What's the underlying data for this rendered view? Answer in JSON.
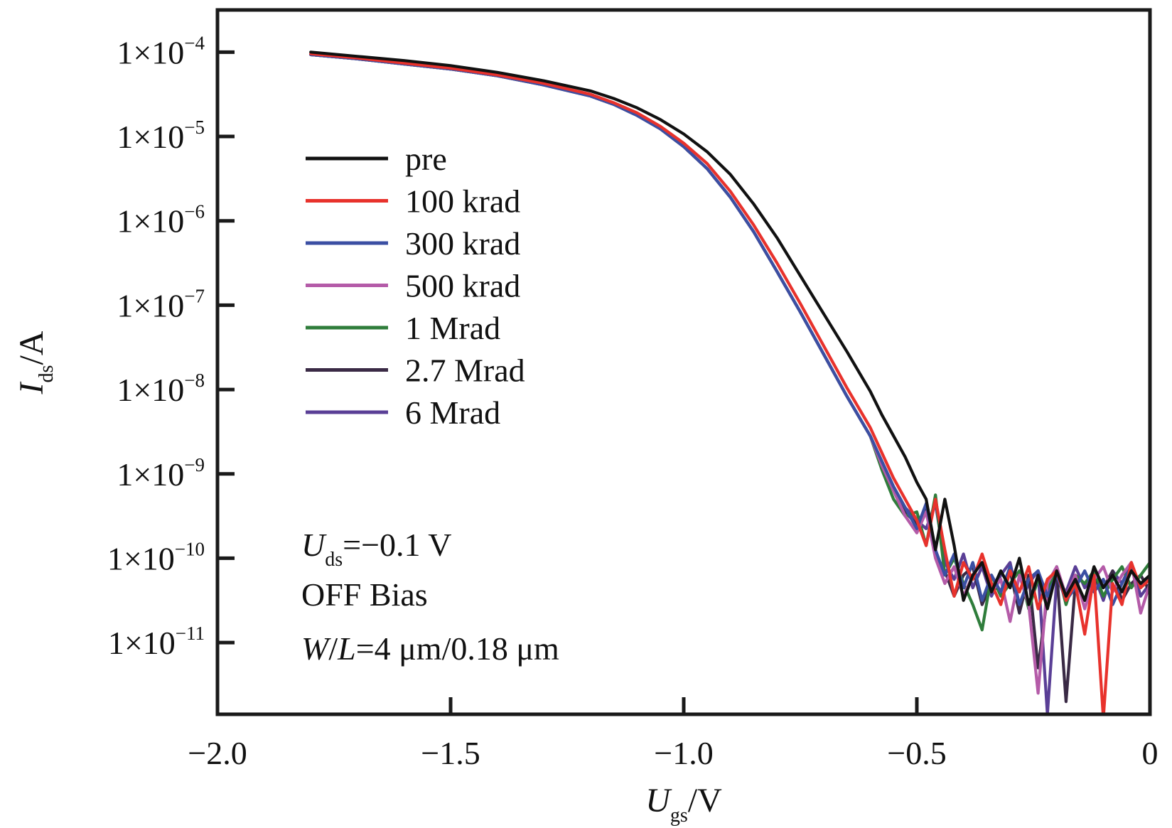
{
  "chart_data": {
    "type": "line",
    "title": "",
    "xlabel": {
      "main": "U",
      "sub": "gs",
      "unit": "/V"
    },
    "ylabel": {
      "main": "I",
      "sub": "ds",
      "unit": "/A"
    },
    "xlim": [
      -2.0,
      0
    ],
    "ylim_log10": [
      -11.85,
      -3.5
    ],
    "yscale": "log",
    "grid": false,
    "legend_position": "upper-left",
    "x_ticks": [
      {
        "value": -2.0,
        "label": "−2.0"
      },
      {
        "value": -1.5,
        "label": "−1.5"
      },
      {
        "value": -1.0,
        "label": "−1.0"
      },
      {
        "value": -0.5,
        "label": "−0.5"
      },
      {
        "value": 0,
        "label": "0"
      }
    ],
    "y_ticks": [
      {
        "exp": -4,
        "base": "1×10",
        "sup": "−4"
      },
      {
        "exp": -5,
        "base": "1×10",
        "sup": "−5"
      },
      {
        "exp": -6,
        "base": "1×10",
        "sup": "−6"
      },
      {
        "exp": -7,
        "base": "1×10",
        "sup": "−7"
      },
      {
        "exp": -8,
        "base": "1×10",
        "sup": "−8"
      },
      {
        "exp": -9,
        "base": "1×10",
        "sup": "−9"
      },
      {
        "exp": -10,
        "base": "1×10",
        "sup": "−10"
      },
      {
        "exp": -11,
        "base": "1×10",
        "sup": "−11"
      }
    ],
    "annotations": [
      {
        "main": "U",
        "sub": "ds",
        "rest": "=−0.1 V"
      },
      {
        "text": "OFF Bias"
      },
      {
        "italic1": "W",
        "sep": "/",
        "italic2": "L",
        "rest": "=4 μm/0.18 μm"
      }
    ],
    "x": [
      -1.8,
      -1.7,
      -1.6,
      -1.5,
      -1.4,
      -1.3,
      -1.2,
      -1.15,
      -1.1,
      -1.05,
      -1.0,
      -0.95,
      -0.9,
      -0.85,
      -0.8,
      -0.75,
      -0.7,
      -0.65,
      -0.6,
      -0.575,
      -0.55,
      -0.525,
      -0.5,
      -0.48,
      -0.46,
      -0.44,
      -0.42,
      -0.4,
      -0.38,
      -0.36,
      -0.34,
      -0.32,
      -0.3,
      -0.28,
      -0.26,
      -0.24,
      -0.22,
      -0.2,
      -0.18,
      -0.16,
      -0.14,
      -0.12,
      -0.1,
      -0.08,
      -0.06,
      -0.04,
      -0.02,
      0
    ],
    "series": [
      {
        "name": "pre",
        "color": "#111111",
        "log10_values": [
          -4.0,
          -4.05,
          -4.1,
          -4.16,
          -4.24,
          -4.34,
          -4.46,
          -4.55,
          -4.66,
          -4.8,
          -4.97,
          -5.18,
          -5.45,
          -5.8,
          -6.2,
          -6.65,
          -7.1,
          -7.55,
          -8.02,
          -8.3,
          -8.55,
          -8.8,
          -9.1,
          -9.3,
          -9.9,
          -9.3,
          -9.85,
          -10.5,
          -10.2,
          -10.05,
          -10.4,
          -10.15,
          -10.35,
          -10.0,
          -10.55,
          -10.2,
          -10.6,
          -10.15,
          -10.45,
          -10.25,
          -10.5,
          -10.1,
          -10.35,
          -10.2,
          -10.4,
          -10.15,
          -10.3,
          -10.2
        ]
      },
      {
        "name": "100 krad",
        "color": "#e8322c",
        "log10_values": [
          -4.02,
          -4.07,
          -4.13,
          -4.19,
          -4.27,
          -4.37,
          -4.5,
          -4.6,
          -4.72,
          -4.88,
          -5.08,
          -5.32,
          -5.65,
          -6.05,
          -6.5,
          -6.98,
          -7.48,
          -7.98,
          -8.45,
          -8.75,
          -9.05,
          -9.3,
          -9.55,
          -9.85,
          -9.3,
          -9.9,
          -10.45,
          -10.05,
          -10.25,
          -9.95,
          -10.3,
          -10.55,
          -10.15,
          -10.4,
          -10.1,
          -10.6,
          -10.25,
          -10.15,
          -10.5,
          -10.3,
          -10.9,
          -10.2,
          -11.9,
          -10.3,
          -10.55,
          -10.05,
          -10.35,
          -10.25
        ]
      },
      {
        "name": "300 krad",
        "color": "#3b4fa3",
        "log10_values": [
          -4.03,
          -4.08,
          -4.14,
          -4.2,
          -4.28,
          -4.39,
          -4.52,
          -4.62,
          -4.75,
          -4.91,
          -5.12,
          -5.38,
          -5.72,
          -6.13,
          -6.6,
          -7.08,
          -7.58,
          -8.08,
          -8.55,
          -8.85,
          -9.15,
          -9.4,
          -9.65,
          -9.35,
          -9.9,
          -10.2,
          -9.95,
          -10.35,
          -10.05,
          -10.5,
          -10.2,
          -10.4,
          -10.1,
          -10.55,
          -10.25,
          -10.15,
          -10.45,
          -10.2,
          -10.5,
          -10.35,
          -10.15,
          -10.4,
          -10.25,
          -10.55,
          -10.3,
          -10.1,
          -10.35,
          -10.2
        ]
      },
      {
        "name": "500 krad",
        "color": "#b45ba8",
        "log10_values": [
          -4.03,
          -4.08,
          -4.14,
          -4.2,
          -4.28,
          -4.39,
          -4.52,
          -4.62,
          -4.75,
          -4.91,
          -5.12,
          -5.38,
          -5.72,
          -6.13,
          -6.6,
          -7.08,
          -7.58,
          -8.08,
          -8.55,
          -8.9,
          -9.2,
          -9.5,
          -9.7,
          -9.45,
          -10.0,
          -10.3,
          -10.1,
          -10.45,
          -10.2,
          -10.05,
          -10.4,
          -10.25,
          -10.75,
          -10.2,
          -10.55,
          -11.6,
          -10.3,
          -10.1,
          -10.45,
          -10.2,
          -10.6,
          -10.25,
          -10.1,
          -10.4,
          -10.2,
          -10.05,
          -10.65,
          -10.3
        ]
      },
      {
        "name": "1 Mrad",
        "color": "#2f7d3b",
        "log10_values": [
          -4.03,
          -4.08,
          -4.14,
          -4.2,
          -4.28,
          -4.39,
          -4.52,
          -4.62,
          -4.75,
          -4.91,
          -5.12,
          -5.38,
          -5.72,
          -6.13,
          -6.6,
          -7.08,
          -7.58,
          -8.08,
          -8.55,
          -8.95,
          -9.3,
          -9.5,
          -9.45,
          -9.85,
          -9.25,
          -10.2,
          -10.0,
          -10.3,
          -10.55,
          -10.85,
          -10.2,
          -10.45,
          -10.3,
          -10.15,
          -10.6,
          -10.25,
          -10.4,
          -10.1,
          -10.55,
          -10.2,
          -10.3,
          -10.15,
          -10.45,
          -10.25,
          -10.1,
          -10.35,
          -10.2,
          -10.05
        ]
      },
      {
        "name": "2.7 Mrad",
        "color": "#3a2a45",
        "log10_values": [
          -4.03,
          -4.08,
          -4.14,
          -4.2,
          -4.28,
          -4.39,
          -4.52,
          -4.62,
          -4.75,
          -4.91,
          -5.12,
          -5.38,
          -5.72,
          -6.13,
          -6.6,
          -7.08,
          -7.58,
          -8.08,
          -8.55,
          -8.88,
          -9.18,
          -9.45,
          -9.6,
          -9.4,
          -9.95,
          -10.15,
          -10.45,
          -10.2,
          -10.1,
          -10.55,
          -10.3,
          -10.4,
          -10.15,
          -10.65,
          -10.2,
          -11.3,
          -10.45,
          -10.15,
          -11.7,
          -10.3,
          -10.5,
          -10.25,
          -10.35,
          -10.15,
          -10.5,
          -10.3,
          -10.2,
          -10.4
        ]
      },
      {
        "name": "6 Mrad",
        "color": "#5a3f96",
        "log10_values": [
          -4.03,
          -4.08,
          -4.14,
          -4.2,
          -4.28,
          -4.39,
          -4.52,
          -4.62,
          -4.75,
          -4.91,
          -5.12,
          -5.38,
          -5.72,
          -6.13,
          -6.6,
          -7.08,
          -7.58,
          -8.08,
          -8.55,
          -8.85,
          -9.15,
          -9.4,
          -9.55,
          -9.65,
          -9.35,
          -10.05,
          -10.25,
          -9.95,
          -10.35,
          -10.1,
          -10.45,
          -10.2,
          -10.05,
          -10.55,
          -10.3,
          -10.15,
          -11.85,
          -10.25,
          -10.4,
          -10.1,
          -10.35,
          -10.2,
          -10.5,
          -10.15,
          -10.3,
          -10.05,
          -10.45,
          -10.3
        ]
      }
    ]
  }
}
